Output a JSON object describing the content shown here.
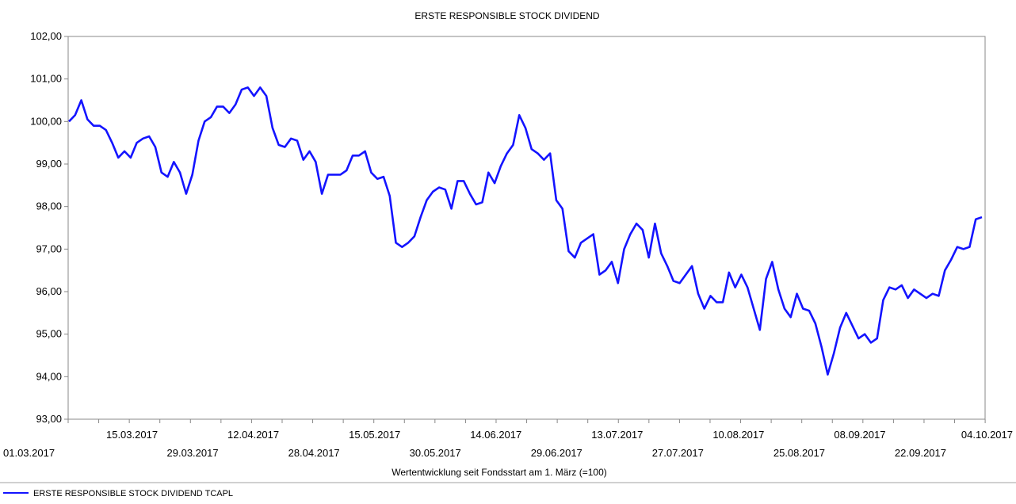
{
  "chart_data": {
    "type": "line",
    "title": "ERSTE RESPONSIBLE STOCK DIVIDEND",
    "xlabel": "Wertentwicklung seit Fondsstart am 1. März (=100)",
    "ylabel": "",
    "ylim": [
      93,
      102
    ],
    "y_ticks": [
      "93,00",
      "94,00",
      "95,00",
      "96,00",
      "97,00",
      "98,00",
      "99,00",
      "100,00",
      "101,00",
      "102,00"
    ],
    "x_ticks": [
      "01.03.2017",
      "15.03.2017",
      "29.03.2017",
      "12.04.2017",
      "28.04.2017",
      "15.05.2017",
      "30.05.2017",
      "14.06.2017",
      "29.06.2017",
      "13.07.2017",
      "27.07.2017",
      "10.08.2017",
      "25.08.2017",
      "08.09.2017",
      "22.09.2017",
      "04.10.2017"
    ],
    "grid": false,
    "legend_position": "bottom-left",
    "series": [
      {
        "name": "ERSTE RESPONSIBLE STOCK DIVIDEND TCAPL",
        "color": "#1414ff",
        "values": [
          100.0,
          100.15,
          100.5,
          100.05,
          99.9,
          99.9,
          99.8,
          99.5,
          99.15,
          99.3,
          99.15,
          99.5,
          99.6,
          99.65,
          99.4,
          98.8,
          98.7,
          99.05,
          98.8,
          98.3,
          98.75,
          99.55,
          100.0,
          100.1,
          100.35,
          100.35,
          100.2,
          100.4,
          100.75,
          100.8,
          100.6,
          100.8,
          100.6,
          99.85,
          99.45,
          99.4,
          99.6,
          99.55,
          99.1,
          99.3,
          99.05,
          98.3,
          98.75,
          98.75,
          98.75,
          98.85,
          99.2,
          99.2,
          99.3,
          98.8,
          98.65,
          98.7,
          98.25,
          97.15,
          97.05,
          97.15,
          97.3,
          97.75,
          98.15,
          98.35,
          98.45,
          98.4,
          97.95,
          98.6,
          98.6,
          98.3,
          98.05,
          98.1,
          98.8,
          98.55,
          98.95,
          99.25,
          99.45,
          100.15,
          99.85,
          99.35,
          99.25,
          99.1,
          99.25,
          98.15,
          97.95,
          96.95,
          96.8,
          97.15,
          97.25,
          97.35,
          96.4,
          96.5,
          96.7,
          96.2,
          97.0,
          97.35,
          97.6,
          97.45,
          96.8,
          97.6,
          96.9,
          96.6,
          96.25,
          96.2,
          96.4,
          96.6,
          95.95,
          95.6,
          95.9,
          95.75,
          95.75,
          96.45,
          96.1,
          96.4,
          96.1,
          95.6,
          95.1,
          96.3,
          96.7,
          96.05,
          95.6,
          95.4,
          95.95,
          95.6,
          95.55,
          95.25,
          94.7,
          94.05,
          94.55,
          95.15,
          95.5,
          95.2,
          94.9,
          95.0,
          94.8,
          94.9,
          95.8,
          96.1,
          96.05,
          96.15,
          95.85,
          96.05,
          95.95,
          95.85,
          95.95,
          95.9,
          96.5,
          96.75,
          97.05,
          97.0,
          97.05,
          97.7,
          97.75
        ]
      }
    ]
  }
}
